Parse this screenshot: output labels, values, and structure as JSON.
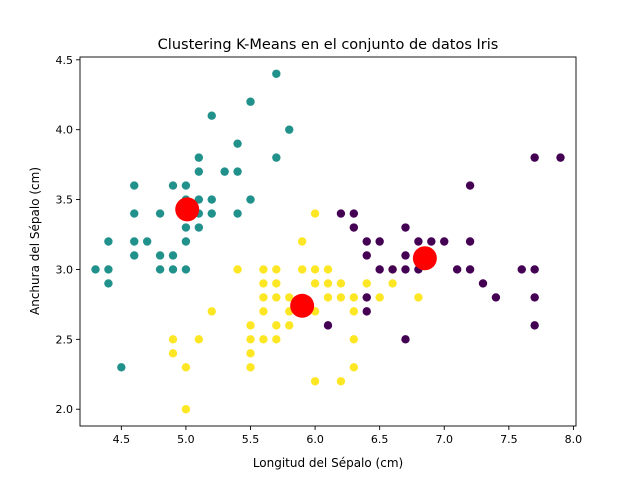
{
  "chart_data": {
    "type": "scatter",
    "title": "Clustering K-Means en el conjunto de datos Iris",
    "xlabel": "Longitud del Sépalo (cm)",
    "ylabel": "Anchura del Sépalo (cm)",
    "xlim": [
      4.18,
      8.02
    ],
    "ylim": [
      1.88,
      4.52
    ],
    "xticks": [
      "4.5",
      "5.0",
      "5.5",
      "6.0",
      "6.5",
      "7.0",
      "7.5",
      "8.0"
    ],
    "yticks": [
      "2.0",
      "2.5",
      "3.0",
      "3.5",
      "4.0",
      "4.5"
    ],
    "grid": false,
    "legend": "none",
    "colors": {
      "cluster_teal": "#21918c",
      "cluster_yellow": "#fde725",
      "cluster_purple": "#440154",
      "centroid": "#ff0000"
    },
    "series": [
      {
        "color_key": "cluster_teal",
        "points": [
          [
            4.3,
            3.0
          ],
          [
            4.4,
            2.9
          ],
          [
            4.4,
            3.0
          ],
          [
            4.4,
            3.2
          ],
          [
            4.5,
            2.3
          ],
          [
            4.6,
            3.1
          ],
          [
            4.6,
            3.2
          ],
          [
            4.6,
            3.4
          ],
          [
            4.6,
            3.6
          ],
          [
            4.7,
            3.2
          ],
          [
            4.8,
            3.0
          ],
          [
            4.8,
            3.1
          ],
          [
            4.8,
            3.4
          ],
          [
            4.9,
            3.0
          ],
          [
            4.9,
            3.1
          ],
          [
            4.9,
            3.6
          ],
          [
            5.0,
            3.0
          ],
          [
            5.0,
            3.2
          ],
          [
            5.0,
            3.3
          ],
          [
            5.0,
            3.4
          ],
          [
            5.0,
            3.5
          ],
          [
            5.0,
            3.6
          ],
          [
            5.1,
            3.3
          ],
          [
            5.1,
            3.4
          ],
          [
            5.1,
            3.5
          ],
          [
            5.1,
            3.7
          ],
          [
            5.1,
            3.8
          ],
          [
            5.2,
            3.4
          ],
          [
            5.2,
            3.5
          ],
          [
            5.2,
            4.1
          ],
          [
            5.3,
            3.7
          ],
          [
            5.4,
            3.4
          ],
          [
            5.4,
            3.7
          ],
          [
            5.4,
            3.9
          ],
          [
            5.5,
            3.5
          ],
          [
            5.5,
            4.2
          ],
          [
            5.7,
            3.8
          ],
          [
            5.7,
            4.4
          ],
          [
            5.8,
            4.0
          ]
        ]
      },
      {
        "color_key": "cluster_yellow",
        "points": [
          [
            4.9,
            2.4
          ],
          [
            4.9,
            2.5
          ],
          [
            5.0,
            2.0
          ],
          [
            5.0,
            2.3
          ],
          [
            5.1,
            2.5
          ],
          [
            5.2,
            2.7
          ],
          [
            5.4,
            3.0
          ],
          [
            5.5,
            2.3
          ],
          [
            5.5,
            2.4
          ],
          [
            5.5,
            2.5
          ],
          [
            5.5,
            2.6
          ],
          [
            5.6,
            2.5
          ],
          [
            5.6,
            2.7
          ],
          [
            5.6,
            2.8
          ],
          [
            5.6,
            2.9
          ],
          [
            5.6,
            3.0
          ],
          [
            5.7,
            2.5
          ],
          [
            5.7,
            2.6
          ],
          [
            5.7,
            2.8
          ],
          [
            5.7,
            2.9
          ],
          [
            5.7,
            3.0
          ],
          [
            5.8,
            2.6
          ],
          [
            5.8,
            2.7
          ],
          [
            5.8,
            2.8
          ],
          [
            5.9,
            3.0
          ],
          [
            5.9,
            3.2
          ],
          [
            6.0,
            2.2
          ],
          [
            6.0,
            2.7
          ],
          [
            6.0,
            2.9
          ],
          [
            6.0,
            3.0
          ],
          [
            6.0,
            3.4
          ],
          [
            6.1,
            2.8
          ],
          [
            6.1,
            2.9
          ],
          [
            6.1,
            3.0
          ],
          [
            6.2,
            2.2
          ],
          [
            6.2,
            2.8
          ],
          [
            6.2,
            2.9
          ],
          [
            6.3,
            2.3
          ],
          [
            6.3,
            2.5
          ],
          [
            6.3,
            2.7
          ],
          [
            6.3,
            2.8
          ],
          [
            6.4,
            2.9
          ],
          [
            6.5,
            2.8
          ],
          [
            6.6,
            2.9
          ],
          [
            6.6,
            3.0
          ],
          [
            6.8,
            2.8
          ]
        ]
      },
      {
        "color_key": "cluster_purple",
        "points": [
          [
            6.1,
            2.6
          ],
          [
            6.2,
            3.4
          ],
          [
            6.3,
            3.3
          ],
          [
            6.3,
            3.4
          ],
          [
            6.4,
            2.7
          ],
          [
            6.4,
            2.8
          ],
          [
            6.4,
            3.1
          ],
          [
            6.4,
            3.2
          ],
          [
            6.5,
            3.0
          ],
          [
            6.5,
            3.2
          ],
          [
            6.6,
            3.0
          ],
          [
            6.7,
            2.5
          ],
          [
            6.7,
            3.0
          ],
          [
            6.7,
            3.1
          ],
          [
            6.7,
            3.3
          ],
          [
            6.8,
            3.0
          ],
          [
            6.8,
            3.2
          ],
          [
            6.9,
            3.1
          ],
          [
            6.9,
            3.2
          ],
          [
            7.0,
            3.2
          ],
          [
            7.1,
            3.0
          ],
          [
            7.2,
            3.0
          ],
          [
            7.2,
            3.2
          ],
          [
            7.2,
            3.6
          ],
          [
            7.3,
            2.9
          ],
          [
            7.4,
            2.8
          ],
          [
            7.6,
            3.0
          ],
          [
            7.7,
            2.6
          ],
          [
            7.7,
            2.8
          ],
          [
            7.7,
            3.0
          ],
          [
            7.7,
            3.8
          ],
          [
            7.9,
            3.8
          ]
        ]
      }
    ],
    "centroids": [
      [
        5.01,
        3.43
      ],
      [
        5.9,
        2.74
      ],
      [
        6.85,
        3.08
      ]
    ]
  }
}
